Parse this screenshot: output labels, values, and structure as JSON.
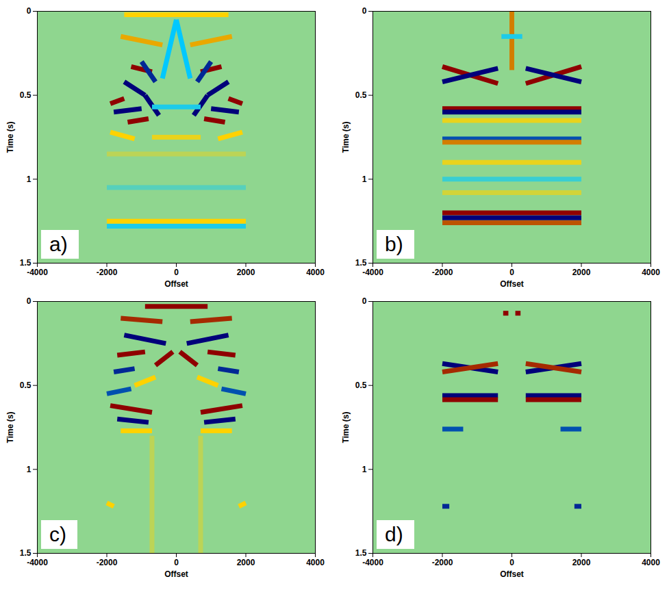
{
  "chart_data": [
    {
      "type": "heatmap",
      "panel_label": "a)",
      "x_label": "Offset",
      "y_label": "Time (s)",
      "xlim": [
        -4000,
        4000
      ],
      "ylim": [
        1.5,
        0
      ],
      "xticks": [
        -4000,
        -2000,
        0,
        2000,
        4000
      ],
      "yticks": [
        0,
        0.5,
        1,
        1.5
      ],
      "tick_labels": true,
      "events": [
        [
          -1300,
          0.33,
          -700,
          0.36,
          1
        ],
        [
          700,
          0.36,
          1300,
          0.33,
          1
        ],
        [
          -1500,
          0.42,
          -900,
          0.5,
          -1
        ],
        [
          900,
          0.5,
          1500,
          0.42,
          -1
        ],
        [
          -1000,
          0.3,
          -600,
          0.42,
          -0.9
        ],
        [
          600,
          0.42,
          1000,
          0.3,
          -0.9
        ],
        [
          -1900,
          0.55,
          -1500,
          0.52,
          1
        ],
        [
          1500,
          0.52,
          1900,
          0.55,
          1
        ],
        [
          -1800,
          0.6,
          -1000,
          0.58,
          -1
        ],
        [
          1000,
          0.58,
          1800,
          0.6,
          -1
        ],
        [
          -1400,
          0.66,
          -800,
          0.64,
          1
        ],
        [
          800,
          0.64,
          1400,
          0.66,
          1
        ],
        [
          -900,
          0.5,
          -500,
          0.62,
          -1
        ],
        [
          500,
          0.62,
          900,
          0.5,
          -1
        ],
        [
          -1900,
          0.72,
          -1200,
          0.76,
          0.5
        ],
        [
          1200,
          0.76,
          1900,
          0.72,
          0.5
        ],
        [
          -1600,
          0.15,
          -400,
          0.2,
          0.6
        ],
        [
          400,
          0.2,
          1600,
          0.15,
          0.6
        ],
        [
          -1500,
          0.02,
          1500,
          0.02,
          0.5
        ],
        [
          0,
          0.05,
          -400,
          0.4,
          -0.5
        ],
        [
          0,
          0.05,
          400,
          0.4,
          -0.5
        ],
        [
          -700,
          0.57,
          700,
          0.57,
          -0.4
        ],
        [
          -700,
          0.75,
          700,
          0.75,
          0.4
        ],
        [
          -2000,
          0.85,
          2000,
          0.85,
          0.2
        ],
        [
          -2000,
          1.05,
          2000,
          1.05,
          -0.2
        ],
        [
          -2000,
          1.25,
          2000,
          1.25,
          0.5
        ],
        [
          -2000,
          1.28,
          2000,
          1.28,
          -0.4
        ]
      ]
    },
    {
      "type": "heatmap",
      "panel_label": "b)",
      "x_label": "Offset",
      "y_label": "Time (s)",
      "xlim": [
        -4000,
        4000
      ],
      "ylim": [
        1.5,
        0
      ],
      "xticks": [
        -4000,
        -2000,
        0,
        2000,
        4000
      ],
      "yticks": [
        0,
        0.5,
        1,
        1.5
      ],
      "tick_labels": true,
      "events": [
        [
          0,
          0,
          0,
          0.35,
          0.7
        ],
        [
          -300,
          0.15,
          300,
          0.15,
          -0.4
        ],
        [
          -2000,
          0.33,
          -400,
          0.43,
          1
        ],
        [
          -2000,
          0.42,
          -400,
          0.34,
          -1
        ],
        [
          400,
          0.43,
          2000,
          0.33,
          1
        ],
        [
          400,
          0.34,
          2000,
          0.42,
          -1
        ],
        [
          -2000,
          0.58,
          2000,
          0.58,
          1
        ],
        [
          -2000,
          0.6,
          2000,
          0.6,
          -1
        ],
        [
          -2000,
          0.65,
          2000,
          0.65,
          0.4
        ],
        [
          -2000,
          0.76,
          2000,
          0.76,
          -0.8
        ],
        [
          -2000,
          0.78,
          2000,
          0.78,
          0.7
        ],
        [
          -2000,
          0.9,
          2000,
          0.9,
          0.4
        ],
        [
          -2000,
          1.0,
          2000,
          1.0,
          -0.3
        ],
        [
          -2000,
          1.08,
          2000,
          1.08,
          0.3
        ],
        [
          -2000,
          1.2,
          2000,
          1.2,
          1
        ],
        [
          -2000,
          1.23,
          2000,
          1.23,
          -1
        ],
        [
          -2000,
          1.26,
          2000,
          1.26,
          0.8
        ]
      ]
    },
    {
      "type": "heatmap",
      "panel_label": "c)",
      "x_label": "Offset",
      "y_label": "Time (s)",
      "xlim": [
        -4000,
        4000
      ],
      "ylim": [
        1.5,
        0
      ],
      "xticks": [
        -4000,
        -2000,
        0,
        2000,
        4000
      ],
      "yticks": [
        0,
        0.5,
        1,
        1.5
      ],
      "tick_labels": true,
      "events": [
        [
          -900,
          0.03,
          900,
          0.03,
          1
        ],
        [
          -1600,
          0.1,
          -400,
          0.12,
          0.9
        ],
        [
          400,
          0.12,
          1600,
          0.1,
          0.9
        ],
        [
          -1500,
          0.2,
          -300,
          0.25,
          -1
        ],
        [
          300,
          0.25,
          1500,
          0.2,
          -1
        ],
        [
          -1700,
          0.32,
          -900,
          0.3,
          1
        ],
        [
          900,
          0.3,
          1700,
          0.32,
          1
        ],
        [
          -600,
          0.38,
          -100,
          0.3,
          1
        ],
        [
          100,
          0.3,
          600,
          0.38,
          1
        ],
        [
          -1800,
          0.42,
          -1200,
          0.4,
          -0.9
        ],
        [
          1200,
          0.4,
          1800,
          0.42,
          -0.9
        ],
        [
          -1200,
          0.5,
          -600,
          0.45,
          0.5
        ],
        [
          600,
          0.45,
          1200,
          0.5,
          0.5
        ],
        [
          -2000,
          0.55,
          -1300,
          0.52,
          -0.8
        ],
        [
          1300,
          0.52,
          2000,
          0.55,
          -0.8
        ],
        [
          -1900,
          0.62,
          -700,
          0.66,
          1
        ],
        [
          700,
          0.66,
          1900,
          0.62,
          1
        ],
        [
          -1700,
          0.7,
          -800,
          0.72,
          -1
        ],
        [
          800,
          0.72,
          1700,
          0.7,
          -1
        ],
        [
          -1600,
          0.77,
          -700,
          0.77,
          0.5
        ],
        [
          700,
          0.77,
          1600,
          0.77,
          0.5
        ],
        [
          -700,
          0.8,
          -700,
          1.5,
          0.2
        ],
        [
          700,
          0.8,
          700,
          1.5,
          0.2
        ],
        [
          -2000,
          1.2,
          -1800,
          1.22,
          0.5
        ],
        [
          1800,
          1.22,
          2000,
          1.2,
          0.5
        ]
      ]
    },
    {
      "type": "heatmap",
      "panel_label": "d)",
      "x_label": "Offset",
      "y_label": "Time (s)",
      "xlim": [
        -4000,
        4000
      ],
      "ylim": [
        1.5,
        0
      ],
      "xticks": [
        -4000,
        -2000,
        0,
        2000,
        4000
      ],
      "yticks": [
        0,
        0.5,
        1,
        1.5
      ],
      "tick_labels": true,
      "events": [
        [
          -250,
          0.07,
          -100,
          0.07,
          1
        ],
        [
          100,
          0.07,
          250,
          0.07,
          1
        ],
        [
          -2000,
          0.37,
          -400,
          0.42,
          -1
        ],
        [
          -2000,
          0.42,
          -400,
          0.37,
          0.9
        ],
        [
          400,
          0.42,
          2000,
          0.37,
          -1
        ],
        [
          400,
          0.37,
          2000,
          0.42,
          0.9
        ],
        [
          -2000,
          0.56,
          -400,
          0.56,
          -1
        ],
        [
          400,
          0.56,
          2000,
          0.56,
          -1
        ],
        [
          -2000,
          0.585,
          -400,
          0.585,
          1
        ],
        [
          400,
          0.585,
          2000,
          0.585,
          1
        ],
        [
          -2000,
          0.76,
          -1400,
          0.76,
          -0.8
        ],
        [
          1400,
          0.76,
          2000,
          0.76,
          -0.8
        ],
        [
          -2000,
          1.22,
          -1800,
          1.22,
          -0.9
        ],
        [
          1800,
          1.22,
          2000,
          1.22,
          -0.9
        ]
      ]
    }
  ]
}
